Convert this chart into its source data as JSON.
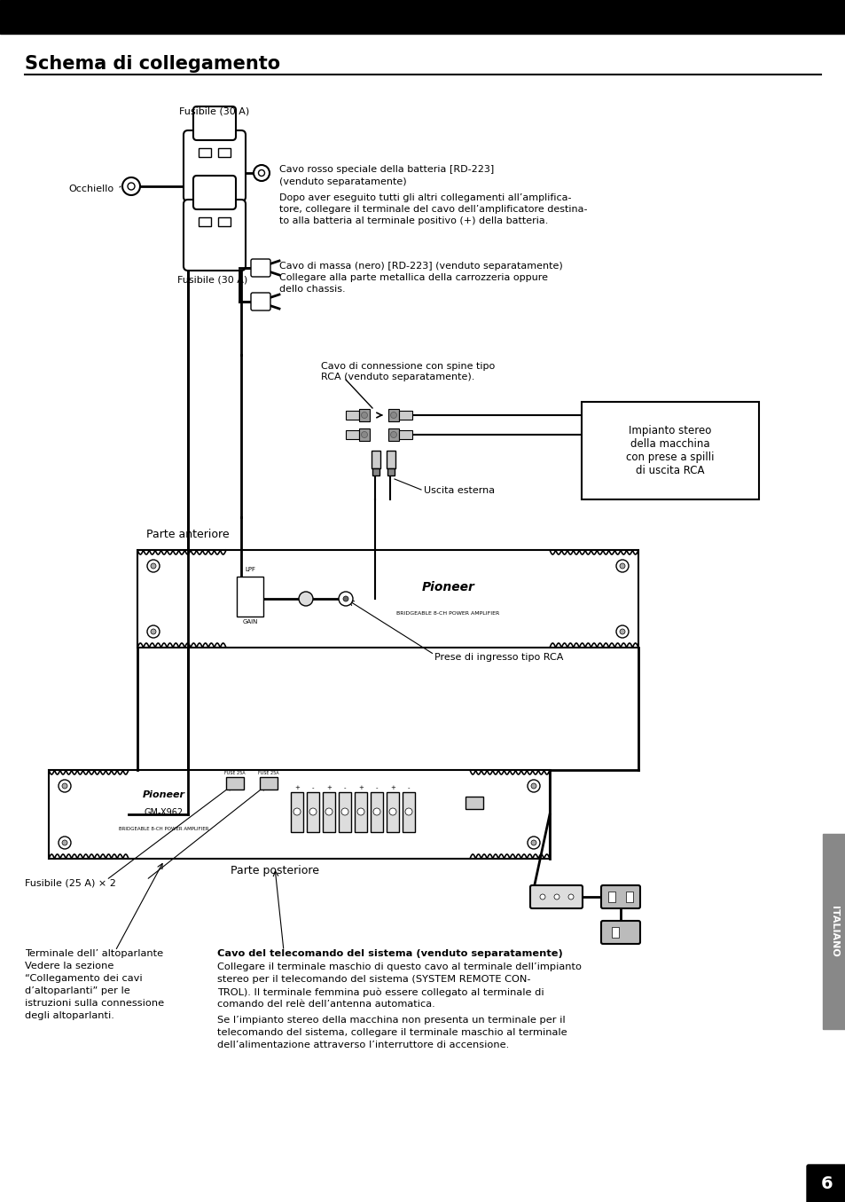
{
  "page_bg": "#ffffff",
  "title": "Schema di collegamento",
  "title_fontsize": 15,
  "page_number": "6",
  "sidebar_label": "ITALIANO",
  "label_fusibile_top": "Fusibile (30 A)",
  "label_fusibile_bottom": "Fusibile (30 A)",
  "label_occhiello": "Occhiello",
  "label_cavo_rosso_1": "Cavo rosso speciale della batteria [RD-223]",
  "label_cavo_rosso_2": "(venduto separatamente)",
  "label_cavo_rosso_3": "Dopo aver eseguito tutti gli altri collegamenti all’amplifica-",
  "label_cavo_rosso_4": "tore, collegare il terminale del cavo dell’amplificatore destina-",
  "label_cavo_rosso_5": "to alla batteria al terminale positivo (+) della batteria.",
  "label_cavo_massa_1": "Cavo di massa (nero) [RD-223] (venduto separatamente)",
  "label_cavo_massa_2": "Collegare alla parte metallica della carrozzeria oppure",
  "label_cavo_massa_3": "dello chassis.",
  "label_cavo_rca": "Cavo di connessione con spine tipo\nRCA (venduto separatamente).",
  "label_impianto": "Impianto stereo\ndella macchina\ncon prese a spilli\ndi uscita RCA",
  "label_uscita": "Uscita esterna",
  "label_parte_ant": "Parte anteriore",
  "label_prese_rca": "Prese di ingresso tipo RCA",
  "label_parte_post": "Parte posteriore",
  "label_fusibile25": "Fusibile (25 A) × 2",
  "label_terminale_1": "Terminale dell’ altoparlante",
  "label_terminale_2": "Vedere la sezione",
  "label_terminale_3": "“Collegamento dei cavi",
  "label_terminale_4": "d’altoparlanti” per le",
  "label_terminale_5": "istruzioni sulla connessione",
  "label_terminale_6": "degli altoparlanti.",
  "label_cavo_tel_1": "Cavo del telecomando del sistema (venduto separatamente)",
  "label_cavo_tel_2": "Collegare il terminale maschio di questo cavo al terminale dell’impianto",
  "label_cavo_tel_3": "stereo per il telecomando del sistema (SYSTEM REMOTE CON-",
  "label_cavo_tel_4": "TROL). Il terminale femmina può essere collegato al terminale di",
  "label_cavo_tel_5": "comando del relè dell’antenna automatica.",
  "label_cavo_tel_6": "Se l’impianto stereo della macchina non presenta un terminale per il",
  "label_cavo_tel_7": "telecomando del sistema, collegare il terminale maschio al terminale",
  "label_cavo_tel_8": "dell’alimentazione attraverso l’interruttore di accensione.",
  "text_color": "#000000",
  "line_color": "#000000"
}
